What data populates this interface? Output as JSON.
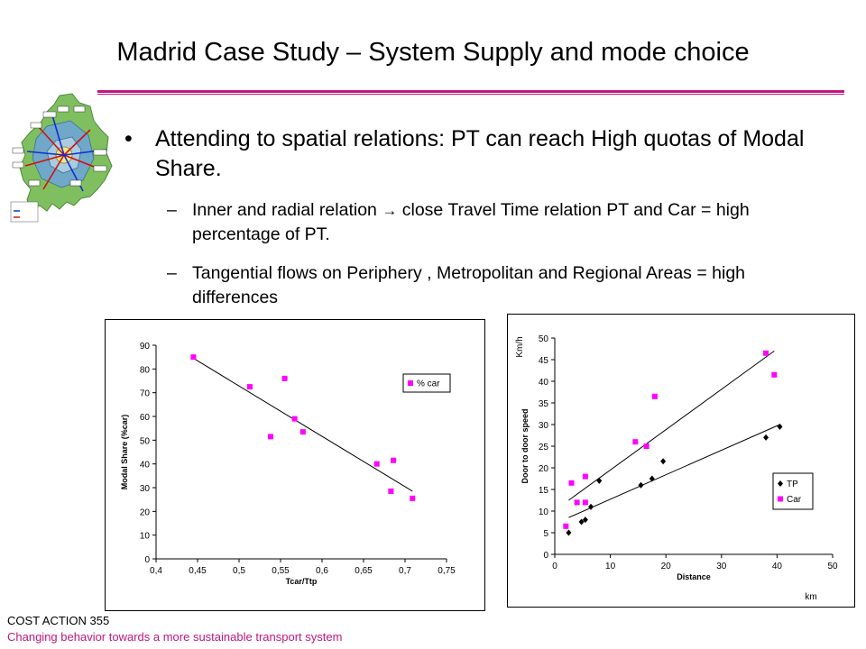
{
  "title": "Madrid Case Study – System Supply and mode choice",
  "bullets": {
    "main": "Attending to spatial relations: PT can reach High quotas of Modal Share.",
    "sub1_a": "Inner and radial relation",
    "sub1_b": "close Travel Time relation PT and Car = high percentage of PT.",
    "sub2": "Tangential flows on Periphery , Metropolitan and Regional Areas = high differences",
    "dash": "–",
    "dot": "•",
    "arrow": "→"
  },
  "footer": {
    "line1": "COST ACTION 355",
    "line2": "Changing behavior towards a more sustainable transport system"
  },
  "colors": {
    "accent": "#c0167e",
    "car_points": "#ff00ff",
    "tp_points": "#000000"
  },
  "chart_data": [
    {
      "type": "scatter",
      "title": "",
      "xlabel": "Tcar/Ttp",
      "ylabel": "Modal Share (%car)",
      "xlim": [
        0.4,
        0.75
      ],
      "ylim": [
        0,
        90
      ],
      "xticks": [
        "0,4",
        "0,45",
        "0,5",
        "0,55",
        "0,6",
        "0,65",
        "0,7",
        "0,75"
      ],
      "yticks": [
        "0",
        "10",
        "20",
        "30",
        "40",
        "50",
        "60",
        "70",
        "80",
        "90"
      ],
      "legend_position": "top-right",
      "series": [
        {
          "name": "% car",
          "marker": "square",
          "points": [
            [
              0.445,
              85
            ],
            [
              0.513,
              72.5
            ],
            [
              0.538,
              51.5
            ],
            [
              0.555,
              76
            ],
            [
              0.567,
              59
            ],
            [
              0.577,
              53.5
            ],
            [
              0.666,
              40
            ],
            [
              0.683,
              28.5
            ],
            [
              0.686,
              41.5
            ],
            [
              0.709,
              25.5
            ]
          ]
        }
      ],
      "trendline": [
        [
          0.445,
          84.5
        ],
        [
          0.709,
          28.5
        ]
      ]
    },
    {
      "type": "scatter",
      "title": "",
      "xlabel": "Distance",
      "ylabel": "Door to door speed",
      "x_unit": "km",
      "y_unit": "Km/h",
      "xlim": [
        0,
        50
      ],
      "ylim": [
        0,
        50
      ],
      "xticks": [
        "0",
        "10",
        "20",
        "30",
        "40",
        "50"
      ],
      "yticks": [
        "0",
        "5",
        "10",
        "15",
        "20",
        "25",
        "30",
        "35",
        "40",
        "45",
        "50"
      ],
      "legend_position": "bottom-right",
      "series": [
        {
          "name": "TP",
          "marker": "diamond",
          "points": [
            [
              2.5,
              5
            ],
            [
              4.8,
              7.5
            ],
            [
              5.5,
              8
            ],
            [
              6.5,
              11
            ],
            [
              8,
              17
            ],
            [
              15.5,
              16
            ],
            [
              17.5,
              17.5
            ],
            [
              19.5,
              21.5
            ],
            [
              38,
              27
            ],
            [
              40.5,
              29.5
            ]
          ]
        },
        {
          "name": "Car",
          "marker": "square",
          "points": [
            [
              2,
              6.5
            ],
            [
              3,
              16.5
            ],
            [
              4,
              12
            ],
            [
              5.5,
              18
            ],
            [
              5.5,
              12
            ],
            [
              14.5,
              26
            ],
            [
              16.5,
              25
            ],
            [
              18,
              36.5
            ],
            [
              38,
              46.5
            ],
            [
              39.5,
              41.5
            ]
          ]
        }
      ],
      "trendlines": [
        {
          "series": "TP",
          "points": [
            [
              2.5,
              8.5
            ],
            [
              40.5,
              30
            ]
          ]
        },
        {
          "series": "Car",
          "points": [
            [
              2.5,
              12.5
            ],
            [
              39.5,
              47
            ]
          ]
        }
      ]
    }
  ]
}
